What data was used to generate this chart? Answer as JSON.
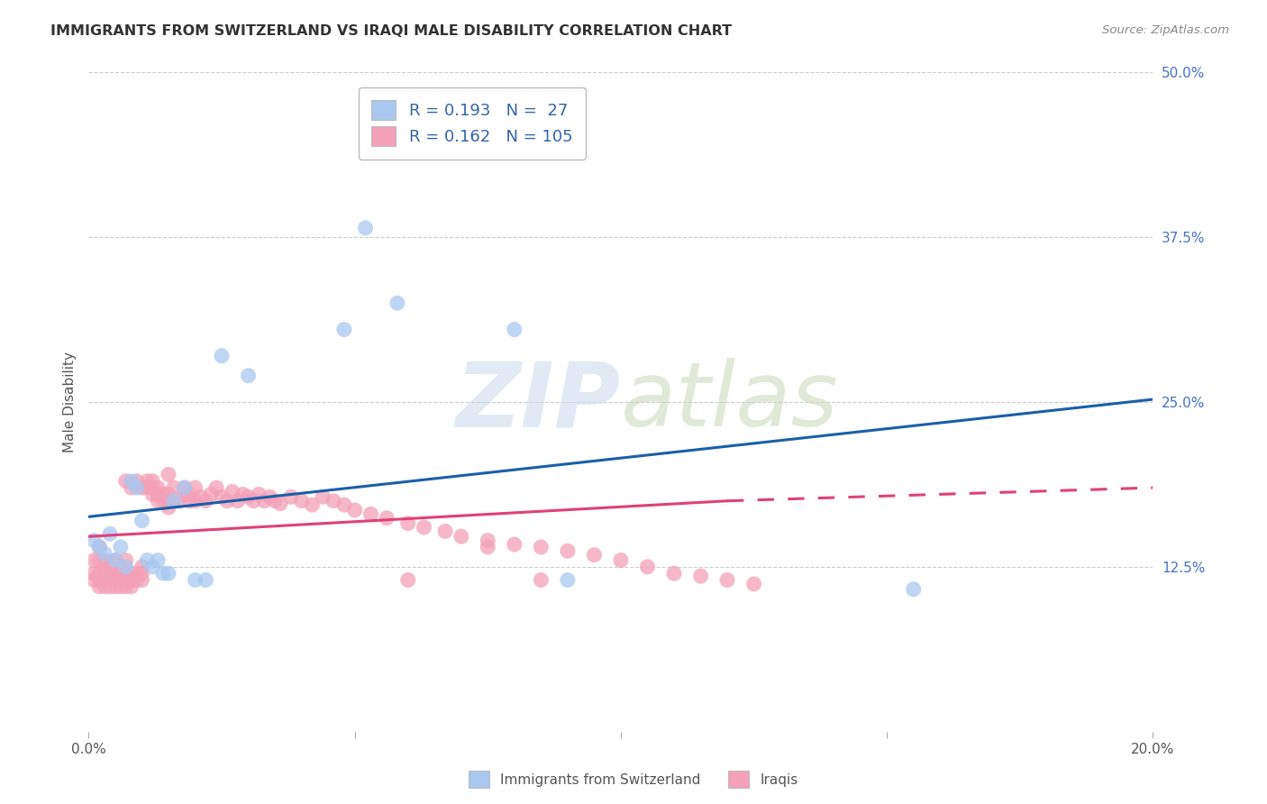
{
  "title": "IMMIGRANTS FROM SWITZERLAND VS IRAQI MALE DISABILITY CORRELATION CHART",
  "source": "Source: ZipAtlas.com",
  "ylabel": "Male Disability",
  "x_min": 0.0,
  "x_max": 0.2,
  "y_min": 0.0,
  "y_max": 0.5,
  "x_ticks": [
    0.0,
    0.05,
    0.1,
    0.15,
    0.2
  ],
  "x_tick_labels": [
    "0.0%",
    "",
    "",
    "",
    "20.0%"
  ],
  "y_ticks": [
    0.0,
    0.125,
    0.25,
    0.375,
    0.5
  ],
  "y_tick_labels": [
    "",
    "12.5%",
    "25.0%",
    "37.5%",
    "50.0%"
  ],
  "swiss_color": "#A8C8F0",
  "iraqi_color": "#F4A0B8",
  "swiss_R": 0.193,
  "swiss_N": 27,
  "iraqi_R": 0.162,
  "iraqi_N": 105,
  "swiss_line_color": "#1a5fa8",
  "iraqi_line_color": "#e0407a",
  "swiss_line_y0": 0.163,
  "swiss_line_y1": 0.252,
  "iraqi_line_y0": 0.148,
  "iraqi_line_y_solid_end": 0.175,
  "iraqi_line_x_solid_end": 0.12,
  "iraqi_line_y_dash_end": 0.185,
  "swiss_points_x": [
    0.001,
    0.002,
    0.003,
    0.004,
    0.005,
    0.006,
    0.007,
    0.008,
    0.009,
    0.01,
    0.011,
    0.012,
    0.013,
    0.014,
    0.015,
    0.016,
    0.018,
    0.02,
    0.022,
    0.025,
    0.03,
    0.048,
    0.052,
    0.058,
    0.08,
    0.09,
    0.155
  ],
  "swiss_points_y": [
    0.145,
    0.14,
    0.135,
    0.15,
    0.13,
    0.14,
    0.125,
    0.19,
    0.185,
    0.16,
    0.13,
    0.125,
    0.13,
    0.12,
    0.12,
    0.175,
    0.185,
    0.115,
    0.115,
    0.285,
    0.27,
    0.305,
    0.382,
    0.325,
    0.305,
    0.115,
    0.108
  ],
  "iraqi_points_x": [
    0.001,
    0.001,
    0.001,
    0.002,
    0.002,
    0.002,
    0.002,
    0.002,
    0.003,
    0.003,
    0.003,
    0.003,
    0.003,
    0.004,
    0.004,
    0.004,
    0.005,
    0.005,
    0.005,
    0.005,
    0.006,
    0.006,
    0.006,
    0.007,
    0.007,
    0.007,
    0.007,
    0.007,
    0.008,
    0.008,
    0.008,
    0.008,
    0.009,
    0.009,
    0.009,
    0.01,
    0.01,
    0.01,
    0.01,
    0.011,
    0.011,
    0.012,
    0.012,
    0.012,
    0.013,
    0.013,
    0.013,
    0.014,
    0.014,
    0.015,
    0.015,
    0.015,
    0.015,
    0.016,
    0.016,
    0.017,
    0.018,
    0.018,
    0.019,
    0.019,
    0.02,
    0.02,
    0.021,
    0.022,
    0.023,
    0.024,
    0.025,
    0.026,
    0.027,
    0.028,
    0.029,
    0.03,
    0.031,
    0.032,
    0.033,
    0.034,
    0.035,
    0.036,
    0.038,
    0.04,
    0.042,
    0.044,
    0.046,
    0.048,
    0.05,
    0.053,
    0.056,
    0.06,
    0.063,
    0.067,
    0.07,
    0.075,
    0.08,
    0.085,
    0.09,
    0.095,
    0.1,
    0.105,
    0.11,
    0.115,
    0.12,
    0.125,
    0.06,
    0.075,
    0.085
  ],
  "iraqi_points_y": [
    0.115,
    0.12,
    0.13,
    0.11,
    0.115,
    0.12,
    0.13,
    0.14,
    0.11,
    0.115,
    0.12,
    0.125,
    0.13,
    0.11,
    0.118,
    0.125,
    0.11,
    0.115,
    0.12,
    0.13,
    0.11,
    0.115,
    0.125,
    0.11,
    0.115,
    0.12,
    0.13,
    0.19,
    0.11,
    0.115,
    0.12,
    0.185,
    0.115,
    0.12,
    0.19,
    0.115,
    0.12,
    0.125,
    0.185,
    0.185,
    0.19,
    0.18,
    0.185,
    0.19,
    0.175,
    0.18,
    0.185,
    0.175,
    0.18,
    0.17,
    0.175,
    0.18,
    0.195,
    0.175,
    0.185,
    0.175,
    0.18,
    0.185,
    0.175,
    0.18,
    0.175,
    0.185,
    0.178,
    0.175,
    0.18,
    0.185,
    0.178,
    0.175,
    0.182,
    0.175,
    0.18,
    0.178,
    0.175,
    0.18,
    0.175,
    0.178,
    0.175,
    0.173,
    0.178,
    0.175,
    0.172,
    0.178,
    0.175,
    0.172,
    0.168,
    0.165,
    0.162,
    0.158,
    0.155,
    0.152,
    0.148,
    0.145,
    0.142,
    0.14,
    0.137,
    0.134,
    0.13,
    0.125,
    0.12,
    0.118,
    0.115,
    0.112,
    0.115,
    0.14,
    0.115
  ]
}
